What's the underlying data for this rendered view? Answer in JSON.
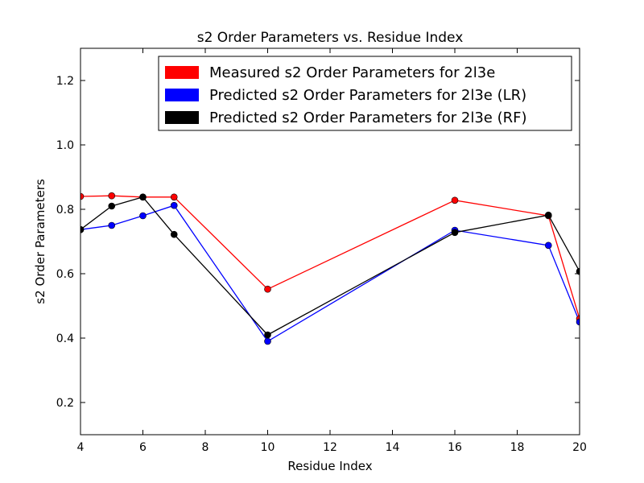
{
  "chart_data": {
    "type": "line",
    "title": "s2 Order Parameters vs. Residue Index",
    "xlabel": "Residue Index",
    "ylabel": "s2 Order Parameters",
    "xlim": [
      4,
      20
    ],
    "ylim": [
      0.1,
      1.3
    ],
    "xticks": [
      "4",
      "6",
      "8",
      "10",
      "12",
      "14",
      "16",
      "18",
      "20"
    ],
    "yticks": [
      "0.2",
      "0.4",
      "0.6",
      "0.8",
      "1.0",
      "1.2"
    ],
    "grid": false,
    "legend_position": "top-right",
    "x": [
      4,
      5,
      6,
      7,
      10,
      16,
      19,
      20
    ],
    "series": [
      {
        "name": "Measured s2 Order Parameters for 2l3e",
        "color": "#ff0000",
        "values": [
          0.84,
          0.842,
          0.838,
          0.838,
          0.552,
          0.828,
          0.78,
          0.46
        ]
      },
      {
        "name": "Predicted s2 Order Parameters for 2l3e (LR)",
        "color": "#0000ff",
        "values": [
          0.737,
          0.75,
          0.78,
          0.812,
          0.39,
          0.735,
          0.688,
          0.45
        ]
      },
      {
        "name": "Predicted s2 Order Parameters for 2l3e (RF)",
        "color": "#000000",
        "values": [
          0.737,
          0.81,
          0.838,
          0.722,
          0.41,
          0.728,
          0.782,
          0.607
        ]
      }
    ]
  }
}
